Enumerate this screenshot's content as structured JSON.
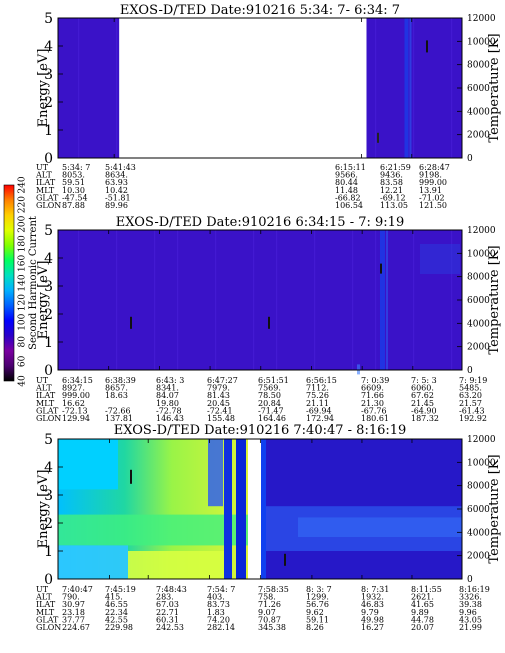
{
  "chart_data": [
    {
      "type": "heatmap",
      "title": "EXOS-D/TED   Date:910216  5:34: 7- 6:34: 7",
      "ylabel": "Energy [eV]",
      "y2label": "Temperature [K]",
      "ylim": [
        0,
        5
      ],
      "y2lim": [
        0,
        12000
      ],
      "yticks": [
        "0",
        "1",
        "2",
        "3",
        "4",
        "5"
      ],
      "y2ticks": [
        "0",
        "2000",
        "4000",
        "6000",
        "8000",
        "10000",
        "12000"
      ],
      "data_gap": [
        "5:41:43",
        "6:15:11"
      ],
      "value_level": "low",
      "orbit_table": {
        "rows": [
          "UT",
          "ALT",
          "ILAT",
          "MLT",
          "GLAT",
          "GLON"
        ],
        "columns": [
          [
            "5:34: 7",
            "8053.",
            "59.51",
            "10.30",
            "-47.54",
            "87.88"
          ],
          [
            "5:41:43",
            "8634.",
            "63.93",
            "10.42",
            "-51.81",
            "89.96"
          ],
          [
            "6:15:11",
            "9566.",
            "80.44",
            "11.48",
            "-66.82",
            "106.54"
          ],
          [
            "6:21:59",
            "9436.",
            "83.58",
            "12.21",
            "-69.12",
            "113.05"
          ],
          [
            "6:28:47",
            "9198.",
            "999.00",
            "13.91",
            "-71.02",
            "121.50"
          ]
        ]
      }
    },
    {
      "type": "heatmap",
      "title": "EXOS-D/TED   Date:910216  6:34:15 - 7: 9:19",
      "ylabel": "Energy [eV]",
      "y2label": "Temperature [K]",
      "ylim": [
        0,
        5
      ],
      "y2lim": [
        0,
        12000
      ],
      "yticks": [
        "0",
        "1",
        "2",
        "3",
        "4",
        "5"
      ],
      "y2ticks": [
        "0",
        "2000",
        "4000",
        "6000",
        "8000",
        "10000",
        "12000"
      ],
      "value_level": "low",
      "orbit_table": {
        "rows": [
          "UT",
          "ALT",
          "ILAT",
          "MLT",
          "GLAT",
          "GLON"
        ],
        "columns": [
          [
            "6:34:15",
            "8927.",
            "999.00",
            "16.62",
            "-72.13",
            "129.94"
          ],
          [
            "6:38:39",
            "8657.",
            "18.63",
            "",
            "-72.66",
            "137.81"
          ],
          [
            "6:43: 3",
            "8341.",
            "84.07",
            "19.80",
            "-72.78",
            "146.43"
          ],
          [
            "6:47:27",
            "7979.",
            "81.43",
            "20.45",
            "-72.41",
            "155.48"
          ],
          [
            "6:51:51",
            "7569.",
            "78.50",
            "20.84",
            "-71.47",
            "164.46"
          ],
          [
            "6:56:15",
            "7112.",
            "75.26",
            "21.11",
            "-69.94",
            "172.94"
          ],
          [
            "7: 0:39",
            "6609.",
            "71.66",
            "21.30",
            "-67.76",
            "180.61"
          ],
          [
            "7: 5: 3",
            "6060.",
            "67.62",
            "21.45",
            "-64.90",
            "187.32"
          ],
          [
            "7: 9:19",
            "5485.",
            "63.20",
            "21.57",
            "-61.43",
            "192.92"
          ]
        ]
      }
    },
    {
      "type": "heatmap",
      "title": "EXOS-D/TED   Date:910216  7:40:47 - 8:16:19",
      "ylabel": "Energy [eV]",
      "y2label": "Temperature [K]",
      "ylim": [
        0,
        5
      ],
      "y2lim": [
        0,
        12000
      ],
      "yticks": [
        "0",
        "1",
        "2",
        "3",
        "4",
        "5"
      ],
      "y2ticks": [
        "0",
        "2000",
        "4000",
        "6000",
        "8000",
        "10000",
        "12000"
      ],
      "value_level": "high",
      "orbit_table": {
        "rows": [
          "UT",
          "ALT",
          "ILAT",
          "MLT",
          "GLAT",
          "GLON"
        ],
        "columns": [
          [
            "7:40:47",
            "790.",
            "30.97",
            "23.18",
            "37.77",
            "224.67"
          ],
          [
            "7:45:19",
            "415.",
            "46.55",
            "22.34",
            "42.55",
            "229.98"
          ],
          [
            "7:48:43",
            "283.",
            "67.03",
            "22.71",
            "60.31",
            "242.53"
          ],
          [
            "7:54: 7",
            "403.",
            "83.73",
            "1.83",
            "74.20",
            "282.14"
          ],
          [
            "7:58:35",
            "758.",
            "71.26",
            "9.07",
            "70.87",
            "345.38"
          ],
          [
            "8: 3: 7",
            "1299.",
            "56.76",
            "9.62",
            "59.11",
            "8.26"
          ],
          [
            "8: 7:31",
            "1932.",
            "46.83",
            "9.79",
            "49.98",
            "16.27"
          ],
          [
            "8:11:55",
            "2621.",
            "41.65",
            "9.89",
            "44.78",
            "20.07"
          ],
          [
            "8:16:19",
            "3326.",
            "39.38",
            "9.96",
            "43.05",
            "21.99"
          ]
        ]
      }
    }
  ],
  "colorbar": {
    "label": "Second Harmonic Current",
    "ticks": [
      "40",
      "60",
      "80",
      "100",
      "120",
      "140",
      "160",
      "180",
      "200",
      "220",
      "240"
    ],
    "colors": [
      "#000000",
      "#4b0070",
      "#7a00a0",
      "#2a00c8",
      "#0000ff",
      "#0060ff",
      "#00b0ff",
      "#00e0c0",
      "#00ff60",
      "#80ff00",
      "#e0ff00",
      "#ffd000",
      "#ff8000",
      "#ff0000"
    ]
  }
}
